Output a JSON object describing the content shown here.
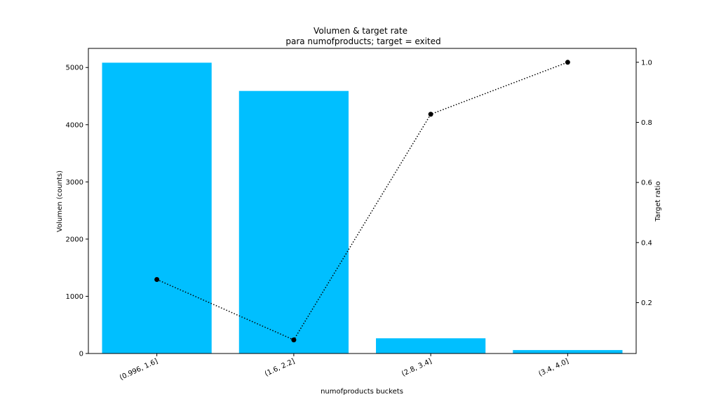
{
  "chart_data": {
    "type": "bar",
    "title": "Volumen & target rate",
    "subtitle": "para numofproducts; target = exited",
    "xlabel": "numofproducts buckets",
    "ylabel": "Volumen (counts)",
    "y2label": "Target ratio",
    "categories": [
      "(0.996, 1.6]",
      "(1.6, 2.2]",
      "(2.8, 3.4]",
      "(3.4, 4.0]"
    ],
    "series": [
      {
        "type": "bar",
        "axis": "left",
        "color": "#00bfff",
        "values": [
          5084,
          4590,
          266,
          60
        ]
      },
      {
        "type": "line",
        "axis": "right",
        "style": "dotted",
        "marker": "circle",
        "color": "#000000",
        "values": [
          0.277,
          0.076,
          0.827,
          1.0
        ]
      }
    ],
    "ylim": [
      0,
      5334
    ],
    "y2lim": [
      0.0307,
      1.0462
    ],
    "yticks": [
      0,
      1000,
      2000,
      3000,
      4000,
      5000
    ],
    "y2ticks": [
      0.2,
      0.4,
      0.6,
      0.8,
      1.0
    ],
    "grid": false,
    "legend": "none"
  }
}
